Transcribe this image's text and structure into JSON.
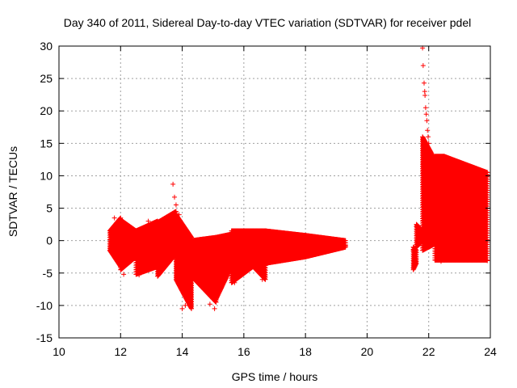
{
  "chart_data": {
    "type": "scatter",
    "title": "Day 340 of 2011, Sidereal Day-to-day VTEC variation (SDTVAR) for receiver pdel",
    "xlabel": "GPS time / hours",
    "ylabel": "SDTVAR / TECUs",
    "xlim": [
      10,
      24
    ],
    "ylim": [
      -15,
      30
    ],
    "xticks": [
      10,
      12,
      14,
      16,
      18,
      20,
      22,
      24
    ],
    "yticks": [
      -15,
      -10,
      -5,
      0,
      5,
      10,
      15,
      20,
      25,
      30
    ],
    "grid": true,
    "marker": "+",
    "color": "#ff0000",
    "series": [
      {
        "name": "SDTVAR",
        "bands": [
          {
            "x": [
              11.65,
              12.0
            ],
            "ymin": [
              -1.5,
              -4.0
            ],
            "ymax": [
              1.5,
              3.5
            ]
          },
          {
            "x": [
              12.0,
              12.5
            ],
            "ymin": [
              -4.5,
              -2.5
            ],
            "ymax": [
              3.2,
              1.5
            ]
          },
          {
            "x": [
              12.5,
              13.2
            ],
            "ymin": [
              -5.2,
              -4.0
            ],
            "ymax": [
              1.5,
              3.0
            ]
          },
          {
            "x": [
              13.2,
              13.8
            ],
            "ymin": [
              -5.5,
              -2.0
            ],
            "ymax": [
              2.8,
              4.5
            ]
          },
          {
            "x": [
              13.8,
              14.3
            ],
            "ymin": [
              -6.0,
              -10.5
            ],
            "ymax": [
              4.0,
              0.5
            ]
          },
          {
            "x": [
              14.3,
              15.1
            ],
            "ymin": [
              -5.5,
              -9.5
            ],
            "ymax": [
              0.0,
              0.5
            ]
          },
          {
            "x": [
              15.1,
              15.6
            ],
            "ymin": [
              -9.0,
              -4.0
            ],
            "ymax": [
              0.5,
              1.0
            ]
          },
          {
            "x": [
              15.6,
              16.3
            ],
            "ymin": [
              -6.5,
              -4.0
            ],
            "ymax": [
              1.5,
              1.5
            ]
          },
          {
            "x": [
              16.3,
              16.7
            ],
            "ymin": [
              -4.0,
              -6.0
            ],
            "ymax": [
              1.5,
              1.5
            ]
          },
          {
            "x": [
              16.7,
              18.0
            ],
            "ymin": [
              -3.5,
              -2.5
            ],
            "ymax": [
              1.5,
              0.8
            ]
          },
          {
            "x": [
              18.0,
              19.3
            ],
            "ymin": [
              -2.5,
              -1.0
            ],
            "ymax": [
              0.8,
              0.0
            ]
          },
          {
            "x": [
              21.5,
              21.6
            ],
            "ymin": [
              -4.5,
              -3.5
            ],
            "ymax": [
              -1.0,
              -1.5
            ]
          },
          {
            "x": [
              21.6,
              21.8
            ],
            "ymin": [
              -1.0,
              0.0
            ],
            "ymax": [
              2.5,
              1.5
            ]
          },
          {
            "x": [
              21.8,
              22.2
            ],
            "ymin": [
              -1.5,
              -0.5
            ],
            "ymax": [
              16.0,
              12.5
            ]
          },
          {
            "x": [
              22.2,
              22.5
            ],
            "ymin": [
              -3.0,
              -3.0
            ],
            "ymax": [
              13.0,
              13.0
            ]
          },
          {
            "x": [
              22.5,
              23.9
            ],
            "ymin": [
              -3.0,
              -3.0
            ],
            "ymax": [
              13.0,
              10.5
            ]
          }
        ],
        "points": [
          {
            "x": 11.65,
            "y": -1.5
          },
          {
            "x": 11.7,
            "y": 1.0
          },
          {
            "x": 11.8,
            "y": 3.5
          },
          {
            "x": 12.1,
            "y": -5.2
          },
          {
            "x": 12.6,
            "y": -5.3
          },
          {
            "x": 12.9,
            "y": 3.0
          },
          {
            "x": 13.7,
            "y": 8.7
          },
          {
            "x": 13.75,
            "y": 6.7
          },
          {
            "x": 13.8,
            "y": 5.5
          },
          {
            "x": 13.9,
            "y": 4.0
          },
          {
            "x": 14.0,
            "y": -10.5
          },
          {
            "x": 14.1,
            "y": -10.0
          },
          {
            "x": 14.9,
            "y": -9.8
          },
          {
            "x": 15.0,
            "y": -9.0
          },
          {
            "x": 15.05,
            "y": -10.5
          },
          {
            "x": 15.7,
            "y": -6.5
          },
          {
            "x": 16.6,
            "y": -6.0
          },
          {
            "x": 19.3,
            "y": -0.8
          },
          {
            "x": 21.5,
            "y": -4.2
          },
          {
            "x": 21.55,
            "y": -3.5
          },
          {
            "x": 21.5,
            "y": -1.5
          },
          {
            "x": 21.6,
            "y": 2.2
          },
          {
            "x": 21.8,
            "y": 29.7
          },
          {
            "x": 21.82,
            "y": 27.0
          },
          {
            "x": 21.85,
            "y": 24.3
          },
          {
            "x": 21.87,
            "y": 23.0
          },
          {
            "x": 21.88,
            "y": 22.4
          },
          {
            "x": 21.9,
            "y": 20.5
          },
          {
            "x": 21.92,
            "y": 19.5
          },
          {
            "x": 21.94,
            "y": 18.5
          },
          {
            "x": 21.96,
            "y": 17.0
          },
          {
            "x": 21.98,
            "y": 16.0
          },
          {
            "x": 22.0,
            "y": 15.0
          },
          {
            "x": 22.05,
            "y": 13.5
          },
          {
            "x": 22.4,
            "y": -3.2
          },
          {
            "x": 23.9,
            "y": 10.5
          },
          {
            "x": 23.9,
            "y": -3.1
          }
        ]
      }
    ]
  }
}
